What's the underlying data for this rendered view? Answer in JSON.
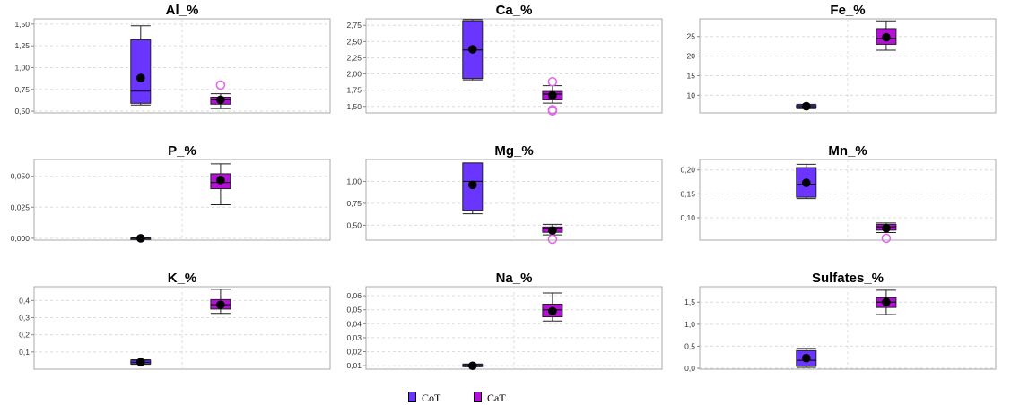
{
  "colors": {
    "CoT": "#6a35ff",
    "CaT": "#b410d9",
    "CaT_outlier": "#e066e8"
  },
  "legend": [
    {
      "label": "CoT",
      "color": "#6a35ff"
    },
    {
      "label": "CaT",
      "color": "#b410d9"
    }
  ],
  "chart_data": [
    {
      "type": "box",
      "title": "Al_%",
      "ylim": [
        0.48,
        1.56
      ],
      "ticks": [
        0.5,
        0.75,
        1.0,
        1.25,
        1.5
      ],
      "tick_labels": [
        "0,50",
        "0,75",
        "1,00",
        "1,25",
        "1,50"
      ],
      "series": [
        {
          "group": "CoT",
          "min": 0.57,
          "q1": 0.59,
          "median": 0.73,
          "q3": 1.32,
          "max": 1.48,
          "mean": 0.88,
          "outliers": []
        },
        {
          "group": "CaT",
          "min": 0.53,
          "q1": 0.58,
          "median": 0.63,
          "q3": 0.66,
          "max": 0.7,
          "mean": 0.63,
          "outliers": [
            0.8
          ]
        }
      ]
    },
    {
      "type": "box",
      "title": "Ca_%",
      "ylim": [
        1.4,
        2.85
      ],
      "ticks": [
        1.5,
        1.75,
        2.0,
        2.25,
        2.5,
        2.75
      ],
      "tick_labels": [
        "1,50",
        "1,75",
        "2,00",
        "2,25",
        "2,50",
        "2,75"
      ],
      "series": [
        {
          "group": "CoT",
          "min": 1.91,
          "q1": 1.93,
          "median": 2.37,
          "q3": 2.82,
          "max": 2.84,
          "mean": 2.38,
          "outliers": []
        },
        {
          "group": "CaT",
          "min": 1.55,
          "q1": 1.6,
          "median": 1.69,
          "q3": 1.73,
          "max": 1.82,
          "mean": 1.67,
          "outliers": [
            1.88,
            1.45,
            1.43
          ]
        }
      ]
    },
    {
      "type": "box",
      "title": "Fe_%",
      "ylim": [
        5.5,
        29.5
      ],
      "ticks": [
        10,
        15,
        20,
        25
      ],
      "tick_labels": [
        "10",
        "15",
        "20",
        "25"
      ],
      "series": [
        {
          "group": "CoT",
          "min": 6.6,
          "q1": 6.8,
          "median": 7.1,
          "q3": 7.5,
          "max": 7.7,
          "mean": 7.2,
          "outliers": []
        },
        {
          "group": "CaT",
          "min": 21.5,
          "q1": 23.0,
          "median": 24.5,
          "q3": 27.0,
          "max": 29.0,
          "mean": 24.8,
          "outliers": []
        }
      ]
    },
    {
      "type": "box",
      "title": "P_%",
      "ylim": [
        -0.0015,
        0.0635
      ],
      "ticks": [
        0.0,
        0.025,
        0.05
      ],
      "tick_labels": [
        "0,000",
        "0,025",
        "0,050"
      ],
      "series": [
        {
          "group": "CoT",
          "min": -0.0002,
          "q1": -0.0001,
          "median": 0.0,
          "q3": 0.0001,
          "max": 0.0003,
          "mean": 0.0,
          "outliers": []
        },
        {
          "group": "CaT",
          "min": 0.027,
          "q1": 0.04,
          "median": 0.045,
          "q3": 0.052,
          "max": 0.06,
          "mean": 0.047,
          "outliers": []
        }
      ]
    },
    {
      "type": "box",
      "title": "Mg_%",
      "ylim": [
        0.33,
        1.25
      ],
      "ticks": [
        0.5,
        0.75,
        1.0
      ],
      "tick_labels": [
        "0,50",
        "0,75",
        "1,00"
      ],
      "series": [
        {
          "group": "CoT",
          "min": 0.63,
          "q1": 0.67,
          "median": 1.0,
          "q3": 1.21,
          "max": 1.21,
          "mean": 0.96,
          "outliers": []
        },
        {
          "group": "CaT",
          "min": 0.39,
          "q1": 0.42,
          "median": 0.46,
          "q3": 0.48,
          "max": 0.51,
          "mean": 0.44,
          "outliers": [
            0.34
          ]
        }
      ]
    },
    {
      "type": "box",
      "title": "Mn_%",
      "ylim": [
        0.053,
        0.222
      ],
      "ticks": [
        0.1,
        0.15,
        0.2
      ],
      "tick_labels": [
        "0,10",
        "0,15",
        "0,20"
      ],
      "series": [
        {
          "group": "CoT",
          "min": 0.14,
          "q1": 0.143,
          "median": 0.17,
          "q3": 0.205,
          "max": 0.212,
          "mean": 0.173,
          "outliers": []
        },
        {
          "group": "CaT",
          "min": 0.069,
          "q1": 0.074,
          "median": 0.081,
          "q3": 0.086,
          "max": 0.089,
          "mean": 0.078,
          "outliers": [
            0.057
          ]
        }
      ]
    },
    {
      "type": "box",
      "title": "K_%",
      "ylim": [
        0.0,
        0.48
      ],
      "ticks": [
        0.1,
        0.2,
        0.3,
        0.4
      ],
      "tick_labels": [
        "0,1",
        "0,2",
        "0,3",
        "0,4"
      ],
      "series": [
        {
          "group": "CoT",
          "min": 0.028,
          "q1": 0.03,
          "median": 0.04,
          "q3": 0.052,
          "max": 0.055,
          "mean": 0.041,
          "outliers": []
        },
        {
          "group": "CaT",
          "min": 0.325,
          "q1": 0.35,
          "median": 0.375,
          "q3": 0.405,
          "max": 0.465,
          "mean": 0.375,
          "outliers": []
        }
      ]
    },
    {
      "type": "box",
      "title": "Na_%",
      "ylim": [
        0.0075,
        0.0665
      ],
      "ticks": [
        0.01,
        0.02,
        0.03,
        0.04,
        0.05,
        0.06
      ],
      "tick_labels": [
        "0,01",
        "0,02",
        "0,03",
        "0,04",
        "0,05",
        "0,06"
      ],
      "series": [
        {
          "group": "CoT",
          "min": 0.0092,
          "q1": 0.0095,
          "median": 0.0099,
          "q3": 0.0108,
          "max": 0.0112,
          "mean": 0.0099,
          "outliers": []
        },
        {
          "group": "CaT",
          "min": 0.042,
          "q1": 0.045,
          "median": 0.05,
          "q3": 0.054,
          "max": 0.062,
          "mean": 0.049,
          "outliers": []
        }
      ]
    },
    {
      "type": "box",
      "title": "Sulfates_%",
      "ylim": [
        -0.02,
        1.85
      ],
      "ticks": [
        0.0,
        0.5,
        1.0,
        1.5
      ],
      "tick_labels": [
        "0,0",
        "0,5",
        "1,0",
        "1,5"
      ],
      "series": [
        {
          "group": "CoT",
          "min": 0.02,
          "q1": 0.05,
          "median": 0.18,
          "q3": 0.4,
          "max": 0.45,
          "mean": 0.23,
          "outliers": []
        },
        {
          "group": "CaT",
          "min": 1.22,
          "q1": 1.38,
          "median": 1.5,
          "q3": 1.6,
          "max": 1.77,
          "mean": 1.5,
          "outliers": []
        }
      ]
    }
  ]
}
